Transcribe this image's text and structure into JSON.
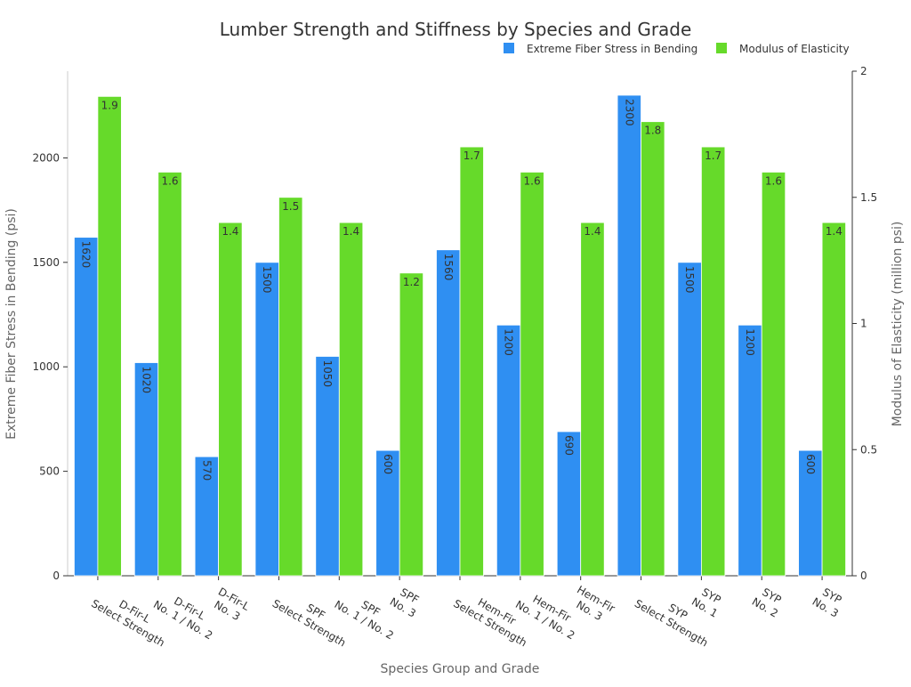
{
  "chart_data": {
    "type": "bar",
    "title": "Lumber Strength and Stiffness by Species and Grade",
    "xlabel": "Species Group and Grade",
    "ylabel": "Extreme Fiber Stress in Bending (psi)",
    "y2label": "Modulus of Elasticity (million psi)",
    "ylim": [
      0,
      2415
    ],
    "y2lim": [
      0,
      2
    ],
    "yticks": [
      "0",
      "500",
      "1000",
      "1500",
      "2000"
    ],
    "y2ticks": [
      "0",
      "0.5",
      "1",
      "1.5",
      "2"
    ],
    "legend_position": "top-right",
    "grid": false,
    "categories": [
      [
        "D-Fir-L",
        "Select Strength"
      ],
      [
        "D-Fir-L",
        "No. 1 / No. 2"
      ],
      [
        "D-Fir-L",
        "No. 3"
      ],
      [
        "SPF",
        "Select Strength"
      ],
      [
        "SPF",
        "No. 1 / No. 2"
      ],
      [
        "SPF",
        "No. 3"
      ],
      [
        "Hem-Fir",
        "Select Strength"
      ],
      [
        "Hem-Fir",
        "No. 1 / No. 2"
      ],
      [
        "Hem-Fir",
        "No. 3"
      ],
      [
        "SYP",
        "Select Strength"
      ],
      [
        "SYP",
        "No. 1"
      ],
      [
        "SYP",
        "No. 2"
      ],
      [
        "SYP",
        "No. 3"
      ]
    ],
    "series": [
      {
        "name": "Extreme Fiber Stress in Bending",
        "axis": "left",
        "color": "#2f8ff2",
        "values": [
          1620,
          1020,
          570,
          1500,
          1050,
          600,
          1560,
          1200,
          690,
          2300,
          1500,
          1200,
          600
        ],
        "labels": [
          "1620",
          "1020",
          "570",
          "1500",
          "1050",
          "600",
          "1560",
          "1200",
          "690",
          "2300",
          "1500",
          "1200",
          "600"
        ]
      },
      {
        "name": "Modulus of Elasticity",
        "axis": "right",
        "color": "#66da2a",
        "values": [
          1.9,
          1.6,
          1.4,
          1.5,
          1.4,
          1.2,
          1.7,
          1.6,
          1.4,
          1.8,
          1.7,
          1.6,
          1.4
        ],
        "labels": [
          "1.9",
          "1.6",
          "1.4",
          "1.5",
          "1.4",
          "1.2",
          "1.7",
          "1.6",
          "1.4",
          "1.8",
          "1.7",
          "1.6",
          "1.4"
        ]
      }
    ]
  }
}
